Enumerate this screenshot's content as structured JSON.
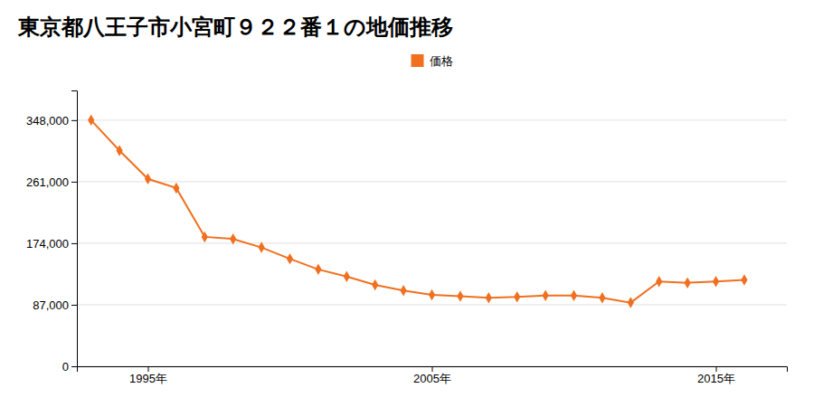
{
  "chart_data": {
    "type": "line",
    "title": "東京都八王子市小宮町９２２番１の地価推移",
    "x": [
      1993,
      1994,
      1995,
      1996,
      1997,
      1998,
      1999,
      2000,
      2001,
      2002,
      2003,
      2004,
      2005,
      2006,
      2007,
      2008,
      2009,
      2010,
      2011,
      2012,
      2013,
      2014,
      2015,
      2016
    ],
    "series": [
      {
        "name": "価格",
        "color": "#f07020",
        "marker": "diamond",
        "values": [
          348000,
          305000,
          265000,
          252000,
          183000,
          180000,
          168000,
          152000,
          137000,
          127000,
          115000,
          107000,
          101000,
          99000,
          97000,
          98000,
          100000,
          100000,
          97000,
          90000,
          120000,
          118000,
          120000,
          122000
        ]
      }
    ],
    "xlim": [
      1992.5,
      2017.5
    ],
    "xticks": [
      {
        "value": 1995,
        "label": "1995年"
      },
      {
        "value": 2005,
        "label": "2005年"
      },
      {
        "value": 2015,
        "label": "2015年"
      }
    ],
    "ylim": [
      0,
      390000
    ],
    "yticks": [
      0,
      {
        "value": 87000,
        "label": "87,000"
      },
      {
        "value": 174000,
        "label": "174,000"
      },
      {
        "value": 261000,
        "label": "261,000"
      },
      {
        "value": 348000,
        "label": "348,000"
      }
    ],
    "grid": "y",
    "legend": "top"
  }
}
